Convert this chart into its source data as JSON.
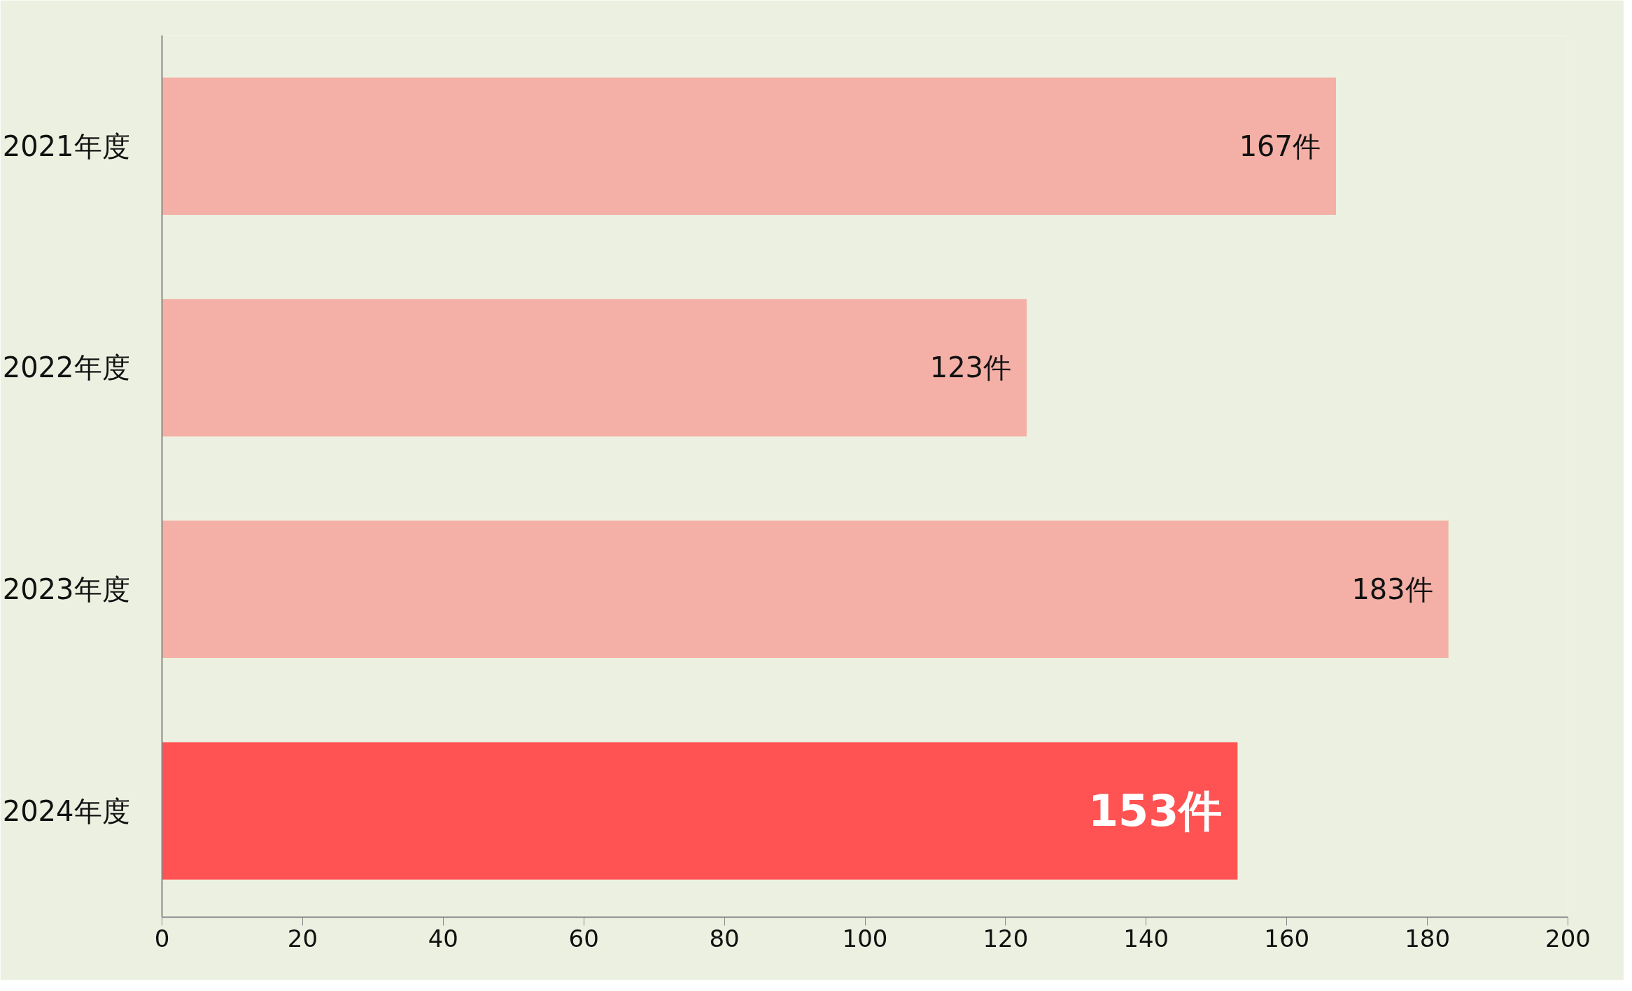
{
  "chart_data": {
    "type": "bar",
    "orientation": "horizontal",
    "categories": [
      "2021年度",
      "2022年度",
      "2023年度",
      "2024年度"
    ],
    "values": [
      167,
      123,
      183,
      153
    ],
    "colors": [
      "#f4b0a6",
      "#f4b0a6",
      "#f4b0a6",
      "#ff5252"
    ],
    "value_labels": [
      "167件",
      "123件",
      "183件",
      "153件"
    ],
    "xlim": [
      0,
      200
    ],
    "xticks": [
      0,
      20,
      40,
      60,
      80,
      100,
      120,
      140,
      160,
      180,
      200
    ],
    "grid": false
  }
}
